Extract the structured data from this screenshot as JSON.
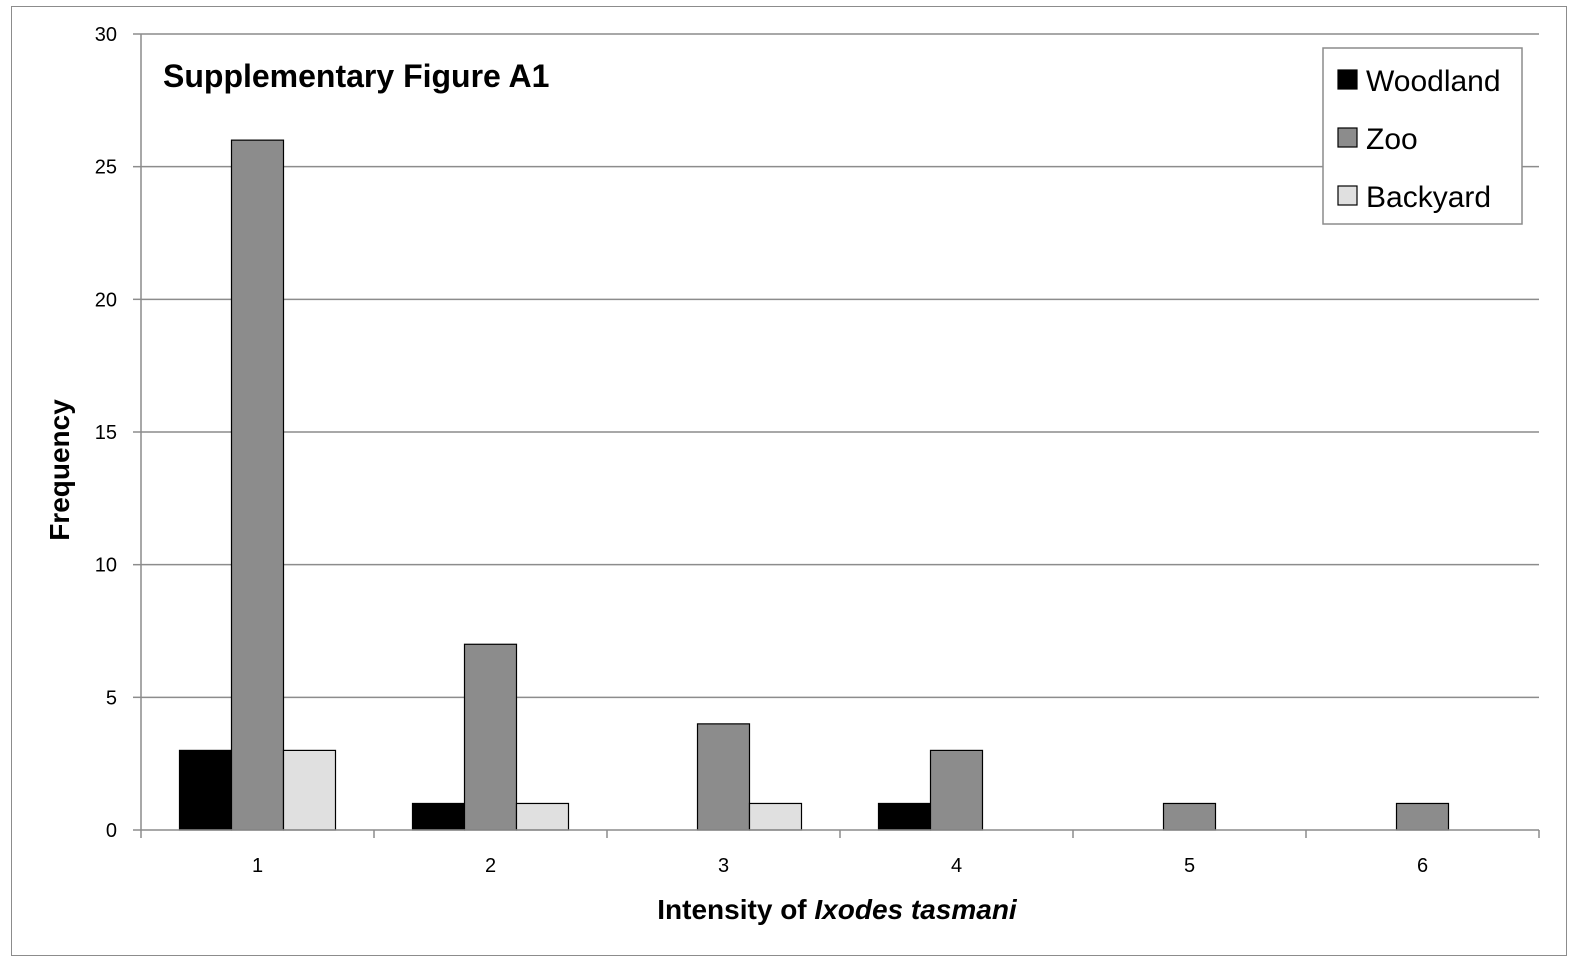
{
  "chart_data": {
    "type": "bar",
    "title": "Supplementary Figure A1",
    "xlabel_prefix": "Intensity of ",
    "xlabel_italic": "Ixodes tasmani",
    "ylabel": "Frequency",
    "categories": [
      "1",
      "2",
      "3",
      "4",
      "5",
      "6"
    ],
    "series": [
      {
        "name": "Woodland",
        "color": "#000000",
        "values": [
          3,
          1,
          0,
          1,
          0,
          0
        ]
      },
      {
        "name": "Zoo",
        "color": "#8c8c8c",
        "values": [
          26,
          7,
          4,
          3,
          1,
          1
        ]
      },
      {
        "name": "Backyard",
        "color": "#e0e0e0",
        "values": [
          3,
          1,
          1,
          0,
          0,
          0
        ]
      }
    ],
    "ylim": [
      0,
      30
    ],
    "yticks": [
      0,
      5,
      10,
      15,
      20,
      25,
      30
    ],
    "grid": true,
    "legend": "top-right"
  }
}
